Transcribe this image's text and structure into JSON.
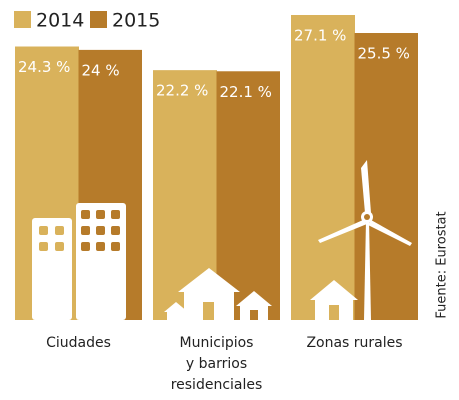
{
  "chart_data": {
    "type": "bar",
    "categories": [
      "Ciudades",
      "Municipios\ny barrios\nresidenciales",
      "Zonas rurales"
    ],
    "series": [
      {
        "name": "2014",
        "color": "#d9b25b",
        "values": [
          24.3,
          22.2,
          27.1
        ],
        "value_labels": [
          "24.3 %",
          "22.2 %",
          "27.1 %"
        ]
      },
      {
        "name": "2015",
        "color": "#b67b2a",
        "values": [
          24,
          22.1,
          25.5
        ],
        "value_labels": [
          "24 %",
          "22.1 %",
          "25.5 %"
        ]
      }
    ],
    "source": "Fuente: Eurostat"
  }
}
